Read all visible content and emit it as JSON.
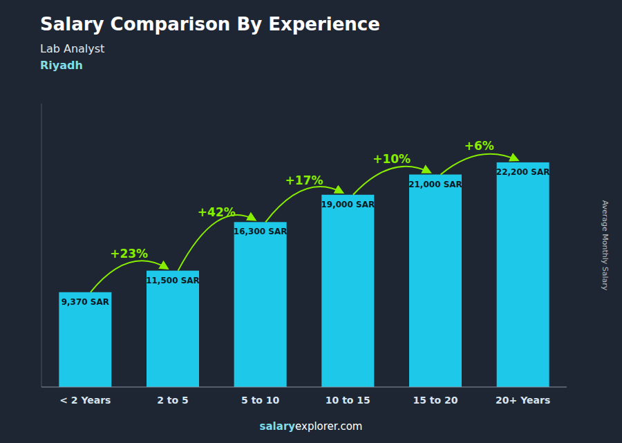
{
  "chart_data": {
    "type": "bar",
    "title": "Salary Comparison By Experience",
    "subtitle": [
      "Lab Analyst",
      "Riyadh"
    ],
    "y_label": "Average Monthly Salary",
    "source": [
      "salary",
      "explorer.com"
    ],
    "categories": [
      "< 2 Years",
      "2 to 5",
      "5 to 10",
      "10 to 15",
      "15 to 20",
      "20+ Years"
    ],
    "values": [
      9370,
      11500,
      16300,
      19000,
      21000,
      22200
    ],
    "value_labels": [
      "9,370 SAR",
      "11,500 SAR",
      "16,300 SAR",
      "19,000 SAR",
      "21,000 SAR",
      "22,200 SAR"
    ],
    "data_labels": true,
    "color": "#1EC8E8",
    "annotations": [
      {
        "text": "+23%",
        "color": "#88EE00"
      },
      {
        "text": "+42%",
        "color": "#88EE00"
      },
      {
        "text": "+17%",
        "color": "#88EE00"
      },
      {
        "text": "+10%",
        "color": "#88EE00"
      },
      {
        "text": "+6%",
        "color": "#88EE00"
      }
    ],
    "ylim": [
      0,
      28000
    ],
    "tick_labels": "x",
    "grid": false
  }
}
